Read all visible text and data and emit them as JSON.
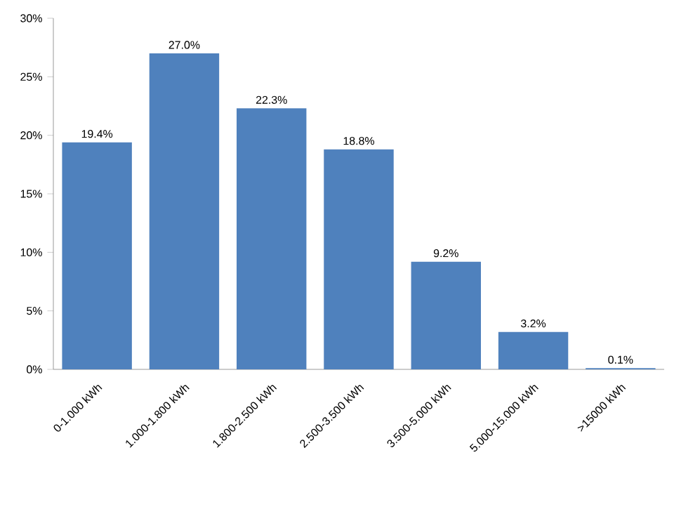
{
  "chart_data": {
    "type": "bar",
    "categories": [
      "0-1.000 kWh",
      "1.000-1.800 kWh",
      "1.800-2.500 kWh",
      "2.500-3.500 kWh",
      "3.500-5.000 kWh",
      "5.000-15.000 kWh",
      ">15000 kWh"
    ],
    "values": [
      19.4,
      27.0,
      22.3,
      18.8,
      9.2,
      3.2,
      0.1
    ],
    "value_labels": [
      "19.4%",
      "27.0%",
      "22.3%",
      "18.8%",
      "9.2%",
      "3.2%",
      "0.1%"
    ],
    "color": "#4f81bd",
    "ylim": [
      0,
      30
    ],
    "yticks": [
      {
        "value": 0,
        "label": "0%"
      },
      {
        "value": 5,
        "label": "5%"
      },
      {
        "value": 10,
        "label": "10%"
      },
      {
        "value": 15,
        "label": "15%"
      },
      {
        "value": 20,
        "label": "20%"
      },
      {
        "value": 25,
        "label": "25%"
      },
      {
        "value": 30,
        "label": "30%"
      }
    ]
  }
}
